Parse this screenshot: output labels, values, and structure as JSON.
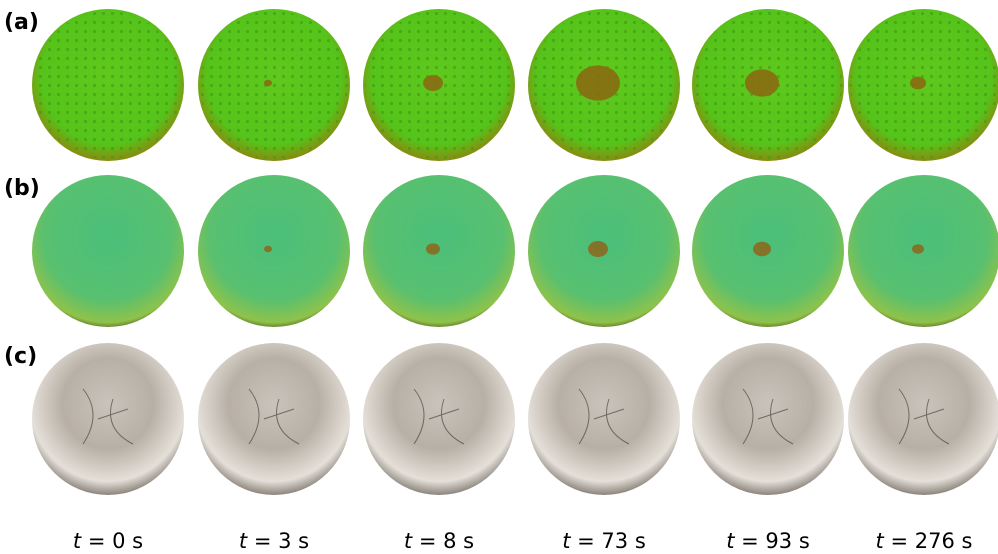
{
  "panels": [
    {
      "label": "(a)"
    },
    {
      "label": "(b)"
    },
    {
      "label": "(c)"
    }
  ],
  "time_variable": "t",
  "times": [
    "= 0 s",
    "= 3 s",
    "= 8 s",
    "= 73 s",
    "= 93 s",
    "= 276 s"
  ]
}
